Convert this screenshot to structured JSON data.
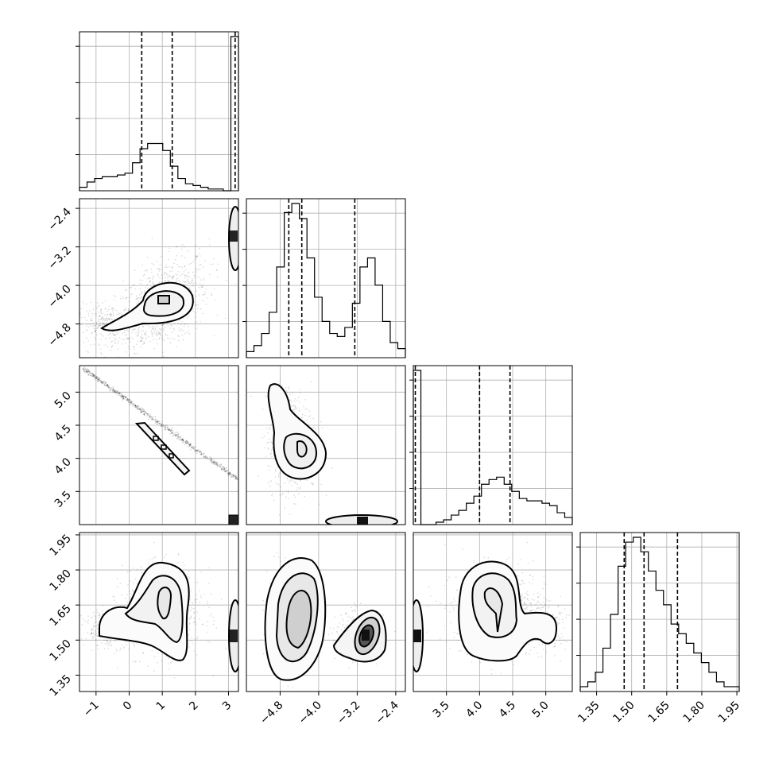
{
  "chart_data": {
    "type": "corner",
    "grid": true,
    "parameters": [
      {
        "range": [
          -1.5,
          3.3
        ],
        "ticks": [
          "−1",
          "0",
          "1",
          "2",
          "3"
        ],
        "tick_values": [
          -1,
          0,
          1,
          2,
          3
        ],
        "quantiles": [
          0.38,
          1.3,
          3.2
        ]
      },
      {
        "range": [
          -5.5,
          -2.2
        ],
        "ticks": [
          "−4.8",
          "−4.0",
          "−3.2",
          "−2.4"
        ],
        "tick_values": [
          -4.8,
          -4.0,
          -3.2,
          -2.4
        ],
        "quantiles": [
          -4.62,
          -4.35,
          -3.25
        ]
      },
      {
        "range": [
          3.0,
          5.4
        ],
        "ticks": [
          "3.5",
          "4.0",
          "4.5",
          "5.0"
        ],
        "tick_values": [
          3.5,
          4.0,
          4.5,
          5.0
        ],
        "quantiles": [
          3.03,
          4.0,
          4.46
        ]
      },
      {
        "range": [
          1.28,
          1.96
        ],
        "ticks": [
          "1.35",
          "1.50",
          "1.65",
          "1.80",
          "1.95"
        ],
        "tick_values": [
          1.35,
          1.5,
          1.65,
          1.8,
          1.95
        ],
        "quantiles": [
          1.468,
          1.553,
          1.696
        ]
      }
    ],
    "histograms": [
      {
        "counts": [
          2,
          5,
          7,
          8,
          8,
          9,
          10,
          16,
          24,
          27,
          27,
          23,
          14,
          7,
          4,
          3,
          2,
          1,
          1,
          0,
          88
        ]
      },
      {
        "counts": [
          2,
          4,
          8,
          15,
          30,
          48,
          51,
          46,
          33,
          20,
          12,
          8,
          7,
          10,
          18,
          30,
          33,
          24,
          12,
          5,
          3
        ]
      },
      {
        "counts": [
          65,
          0,
          0,
          1,
          2,
          4,
          6,
          9,
          12,
          17,
          19,
          20,
          17,
          14,
          11,
          10,
          10,
          9,
          8,
          5,
          3
        ]
      },
      {
        "counts": [
          1,
          2,
          4,
          9,
          16,
          26,
          31,
          32,
          29,
          25,
          21,
          18,
          14,
          12,
          10,
          8,
          6,
          4,
          2,
          1,
          1
        ]
      }
    ],
    "pairs": [
      {
        "x": 0,
        "y": 1
      },
      {
        "x": 0,
        "y": 2
      },
      {
        "x": 1,
        "y": 2
      },
      {
        "x": 0,
        "y": 3
      },
      {
        "x": 1,
        "y": 3
      },
      {
        "x": 2,
        "y": 3
      }
    ]
  }
}
